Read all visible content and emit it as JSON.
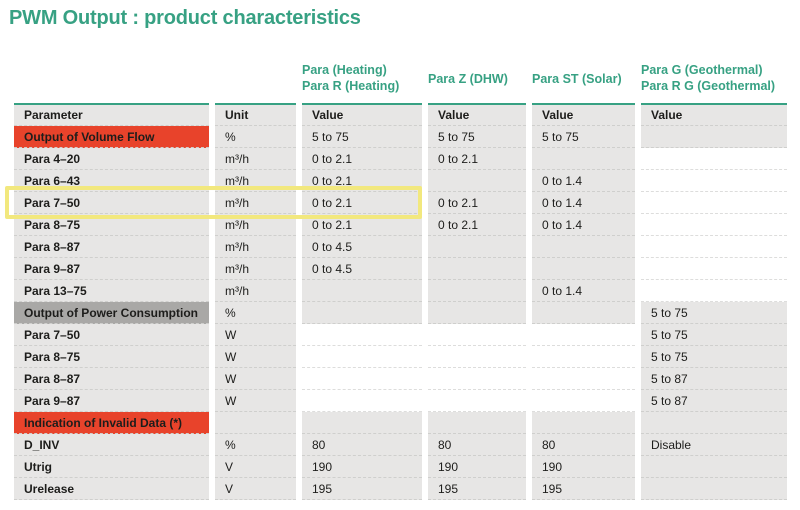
{
  "title": "PWM Output : product characteristics",
  "column_groups": [
    {
      "lines": [
        "Para (Heating)",
        "Para R (Heating)"
      ]
    },
    {
      "lines": [
        "Para Z (DHW)"
      ]
    },
    {
      "lines": [
        "Para ST (Solar)"
      ]
    },
    {
      "lines": [
        "Para G (Geothermal)",
        "Para R G (Geothermal)"
      ]
    }
  ],
  "table": {
    "headers": {
      "parameter": "Parameter",
      "unit": "Unit",
      "value": "Value"
    },
    "rows": [
      {
        "parameter": "Output of Volume Flow",
        "unit": "%",
        "values": [
          "5 to 75",
          "5 to 75",
          "5 to 75",
          ""
        ],
        "rowType": "header-red",
        "section": "volume"
      },
      {
        "parameter": "Para 4–20",
        "unit": "m³/h",
        "values": [
          "0 to 2.1",
          "0 to 2.1",
          "",
          ""
        ],
        "rowType": "data",
        "section": "volume"
      },
      {
        "parameter": "Para 6–43",
        "unit": "m³/h",
        "values": [
          "0 to 2.1",
          "",
          "0 to 1.4",
          ""
        ],
        "rowType": "data",
        "section": "volume"
      },
      {
        "parameter": "Para 7–50",
        "unit": "m³/h",
        "values": [
          "0 to 2.1",
          "0 to 2.1",
          "0 to 1.4",
          ""
        ],
        "rowType": "data",
        "section": "volume",
        "highlight": true
      },
      {
        "parameter": "Para 8–75",
        "unit": "m³/h",
        "values": [
          "0 to 2.1",
          "0 to 2.1",
          "0 to 1.4",
          ""
        ],
        "rowType": "data",
        "section": "volume"
      },
      {
        "parameter": "Para 8–87",
        "unit": "m³/h",
        "values": [
          "0 to 4.5",
          "",
          "",
          ""
        ],
        "rowType": "data",
        "section": "volume"
      },
      {
        "parameter": "Para 9–87",
        "unit": "m³/h",
        "values": [
          "0 to 4.5",
          "",
          "",
          ""
        ],
        "rowType": "data",
        "section": "volume"
      },
      {
        "parameter": "Para 13–75",
        "unit": "m³/h",
        "values": [
          "",
          "",
          "0 to 1.4",
          ""
        ],
        "rowType": "data",
        "section": "volume"
      },
      {
        "parameter": "Output of Power Consumption",
        "unit": "%",
        "values": [
          "",
          "",
          "",
          "5 to 75"
        ],
        "rowType": "header-gray",
        "section": "power"
      },
      {
        "parameter": "Para 7–50",
        "unit": "W",
        "values": [
          "",
          "",
          "",
          "5 to 75"
        ],
        "rowType": "data",
        "section": "power"
      },
      {
        "parameter": "Para 8–75",
        "unit": "W",
        "values": [
          "",
          "",
          "",
          "5 to 75"
        ],
        "rowType": "data",
        "section": "power"
      },
      {
        "parameter": "Para 8–87",
        "unit": "W",
        "values": [
          "",
          "",
          "",
          "5 to 87"
        ],
        "rowType": "data",
        "section": "power"
      },
      {
        "parameter": "Para 9–87",
        "unit": "W",
        "values": [
          "",
          "",
          "",
          "5 to 87"
        ],
        "rowType": "data",
        "section": "power"
      },
      {
        "parameter": "Indication of Invalid Data (*)",
        "unit": "",
        "values": [
          "",
          "",
          "",
          ""
        ],
        "rowType": "header-red",
        "section": "misc"
      },
      {
        "parameter": "D_INV",
        "unit": "%",
        "values": [
          "80",
          "80",
          "80",
          "Disable"
        ],
        "rowType": "data",
        "section": "misc"
      },
      {
        "parameter": "Utrig",
        "unit": "V",
        "values": [
          "190",
          "190",
          "190",
          ""
        ],
        "rowType": "data",
        "section": "misc"
      },
      {
        "parameter": "Urelease",
        "unit": "V",
        "values": [
          "195",
          "195",
          "195",
          ""
        ],
        "rowType": "data",
        "section": "misc"
      }
    ]
  },
  "highlight": {
    "row": "Para 7–50",
    "note": "yellow outline around Parameter, Unit and first Value column"
  },
  "colors": {
    "accent_teal": "#37a183",
    "section_red": "#e8432b",
    "section_dark_gray": "#a9a8a6",
    "cell_gray": "#e7e6e5",
    "highlight_yellow": "#f2e87e",
    "text": "#1d1d1b"
  }
}
